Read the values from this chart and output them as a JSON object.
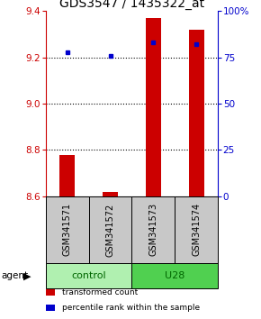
{
  "title": "GDS3547 / 1435322_at",
  "samples": [
    "GSM341571",
    "GSM341572",
    "GSM341573",
    "GSM341574"
  ],
  "groups": [
    "control",
    "control",
    "U28",
    "U28"
  ],
  "red_values": [
    8.78,
    8.62,
    9.37,
    9.32
  ],
  "blue_percentiles": [
    78,
    76,
    83,
    82
  ],
  "baseline": 8.6,
  "ylim_left": [
    8.6,
    9.4
  ],
  "ylim_right": [
    0,
    100
  ],
  "yticks_left": [
    8.6,
    8.8,
    9.0,
    9.2,
    9.4
  ],
  "yticks_right": [
    0,
    25,
    50,
    75,
    100
  ],
  "ytick_labels_right": [
    "0",
    "25",
    "50",
    "75",
    "100%"
  ],
  "hlines": [
    8.8,
    9.0,
    9.2
  ],
  "bar_color": "#cc0000",
  "dot_color": "#0000cc",
  "group_colors": {
    "control": "#b0f0b0",
    "U28": "#50d050"
  },
  "group_label_color": "#006600",
  "left_axis_color": "#cc0000",
  "right_axis_color": "#0000cc",
  "bar_width": 0.35,
  "legend_items": [
    {
      "label": "transformed count",
      "color": "#cc0000"
    },
    {
      "label": "percentile rank within the sample",
      "color": "#0000cc"
    }
  ],
  "agent_label": "agent",
  "sample_box_color": "#c8c8c8",
  "title_fontsize": 10,
  "tick_fontsize": 7.5,
  "label_fontsize": 7.5
}
